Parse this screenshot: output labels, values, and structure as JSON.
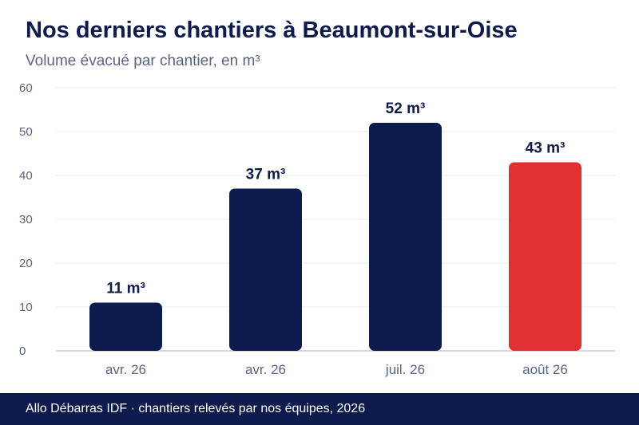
{
  "header": {
    "title": "Nos derniers chantiers à Beaumont-sur-Oise",
    "subtitle": "Volume évacué par chantier, en m³"
  },
  "footer": {
    "text": "Allo Débarras IDF · chantiers relevés par nos équipes, 2026"
  },
  "colors": {
    "primary": "#0e1c4d",
    "highlight": "#e03232",
    "muted_text": "#5a6482",
    "grid": "#ebebf0",
    "axis": "#c9cbe0"
  },
  "chart_data": {
    "type": "bar",
    "title": "Nos derniers chantiers à Beaumont-sur-Oise",
    "subtitle": "Volume évacué par chantier, en m³",
    "categories": [
      "avr. 26",
      "avr. 26",
      "juil. 26",
      "août 26"
    ],
    "values": [
      11,
      37,
      52,
      43
    ],
    "data_labels": [
      "11 m³",
      "37 m³",
      "52 m³",
      "43 m³"
    ],
    "highlight_index": 3,
    "ylim": [
      0,
      60
    ],
    "yticks": [
      "0",
      "10",
      "20",
      "30",
      "40",
      "50",
      "60"
    ],
    "grid": true,
    "legend": "none"
  }
}
